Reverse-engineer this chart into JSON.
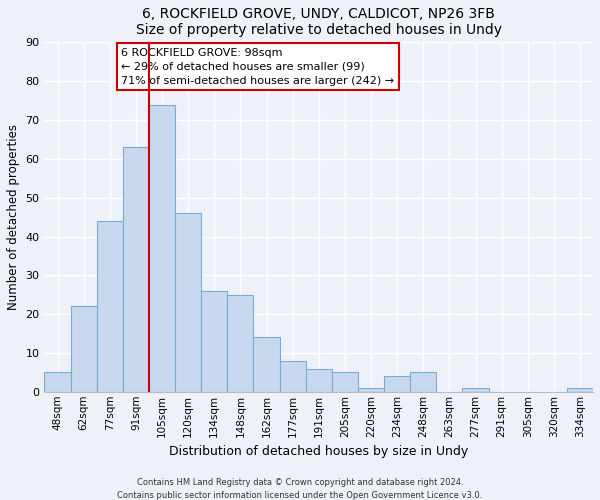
{
  "title": "6, ROCKFIELD GROVE, UNDY, CALDICOT, NP26 3FB",
  "subtitle": "Size of property relative to detached houses in Undy",
  "xlabel": "Distribution of detached houses by size in Undy",
  "ylabel": "Number of detached properties",
  "bar_color": "#c8d8ee",
  "bar_edge_color": "#7aadd4",
  "categories": [
    "48sqm",
    "62sqm",
    "77sqm",
    "91sqm",
    "105sqm",
    "120sqm",
    "134sqm",
    "148sqm",
    "162sqm",
    "177sqm",
    "191sqm",
    "205sqm",
    "220sqm",
    "234sqm",
    "248sqm",
    "263sqm",
    "277sqm",
    "291sqm",
    "305sqm",
    "320sqm",
    "334sqm"
  ],
  "values": [
    5,
    22,
    44,
    63,
    74,
    46,
    26,
    25,
    14,
    8,
    6,
    5,
    1,
    4,
    5,
    0,
    1,
    0,
    0,
    0,
    1
  ],
  "ylim": [
    0,
    90
  ],
  "yticks": [
    0,
    10,
    20,
    30,
    40,
    50,
    60,
    70,
    80,
    90
  ],
  "vline_color": "#cc0000",
  "annotation_title": "6 ROCKFIELD GROVE: 98sqm",
  "annotation_line1": "← 29% of detached houses are smaller (99)",
  "annotation_line2": "71% of semi-detached houses are larger (242) →",
  "annotation_box_color": "#ffffff",
  "annotation_box_edge": "#cc0000",
  "footer1": "Contains HM Land Registry data © Crown copyright and database right 2024.",
  "footer2": "Contains public sector information licensed under the Open Government Licence v3.0.",
  "bg_color": "#eef2f8",
  "plot_bg_color": "#eef2f8",
  "grid_color": "#ffffff"
}
